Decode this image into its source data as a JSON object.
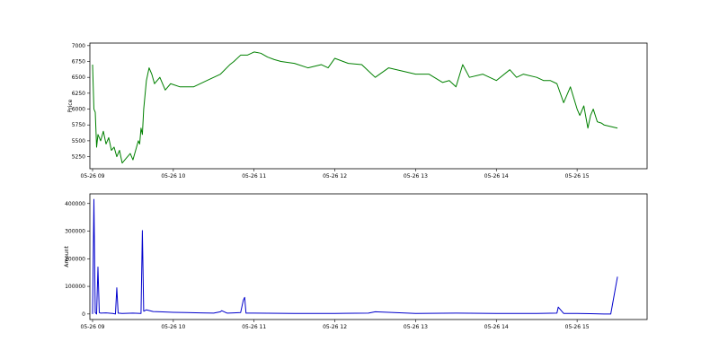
{
  "chart_data": [
    {
      "type": "line",
      "ylabel": "Price",
      "xlabel": "",
      "title": "",
      "ylim": [
        5060,
        7040
      ],
      "xlim": [
        "05-26 08:58",
        "05-26 15:52"
      ],
      "grid": false,
      "color": "#008000",
      "xticks": [
        "05-26 09",
        "05-26 10",
        "05-26 11",
        "05-26 12",
        "05-26 13",
        "05-26 14",
        "05-26 15"
      ],
      "yticks": [
        5250,
        5500,
        5750,
        6000,
        6250,
        6500,
        6750,
        7000
      ],
      "series": [
        {
          "x": [
            "09:00",
            "09:01",
            "09:02",
            "09:03",
            "09:04",
            "09:06",
            "09:08",
            "09:10",
            "09:12",
            "09:14",
            "09:16",
            "09:18",
            "09:20",
            "09:22",
            "09:24",
            "09:26",
            "09:28",
            "09:30",
            "09:32",
            "09:34",
            "09:35",
            "09:36",
            "09:37",
            "09:38",
            "09:40",
            "09:42",
            "09:44",
            "09:46",
            "09:50",
            "09:54",
            "09:58",
            "10:05",
            "10:15",
            "10:25",
            "10:35",
            "10:42",
            "10:45",
            "10:50",
            "10:55",
            "11:00",
            "11:05",
            "11:10",
            "11:15",
            "11:20",
            "11:30",
            "11:40",
            "11:50",
            "11:55",
            "12:00",
            "12:10",
            "12:20",
            "12:25",
            "12:30",
            "12:40",
            "12:50",
            "13:00",
            "13:10",
            "13:20",
            "13:25",
            "13:30",
            "13:35",
            "13:40",
            "13:50",
            "14:00",
            "14:10",
            "14:15",
            "14:20",
            "14:30",
            "14:35",
            "14:40",
            "14:45",
            "14:50",
            "14:55",
            "15:00",
            "15:02",
            "15:05",
            "15:08",
            "15:10",
            "15:12",
            "15:15",
            "15:18",
            "15:20",
            "15:30"
          ],
          "y": [
            6700,
            6000,
            5950,
            5400,
            5600,
            5500,
            5650,
            5450,
            5550,
            5350,
            5400,
            5250,
            5350,
            5150,
            5200,
            5250,
            5300,
            5200,
            5350,
            5500,
            5450,
            5700,
            5600,
            6000,
            6450,
            6650,
            6550,
            6400,
            6500,
            6300,
            6400,
            6350,
            6350,
            6450,
            6550,
            6700,
            6750,
            6850,
            6850,
            6900,
            6880,
            6820,
            6780,
            6750,
            6720,
            6650,
            6700,
            6650,
            6800,
            6720,
            6700,
            6600,
            6500,
            6650,
            6600,
            6550,
            6550,
            6420,
            6450,
            6350,
            6700,
            6500,
            6550,
            6450,
            6620,
            6500,
            6550,
            6500,
            6450,
            6450,
            6400,
            6100,
            6350,
            6000,
            5900,
            6050,
            5700,
            5900,
            6000,
            5800,
            5780,
            5750,
            5700
          ]
        }
      ]
    },
    {
      "type": "line",
      "ylabel": "Amount",
      "xlabel": "",
      "title": "",
      "ylim": [
        -20000,
        435000
      ],
      "xlim": [
        "05-26 08:58",
        "05-26 15:52"
      ],
      "grid": false,
      "color": "#0000cc",
      "xticks": [
        "05-26 09",
        "05-26 10",
        "05-26 11",
        "05-26 12",
        "05-26 13",
        "05-26 14",
        "05-26 15"
      ],
      "yticks": [
        0,
        100000,
        200000,
        300000,
        400000
      ],
      "series": [
        {
          "x": [
            "09:00",
            "09:01",
            "09:02",
            "09:03",
            "09:04",
            "09:05",
            "09:06",
            "09:10",
            "09:15",
            "09:17",
            "09:18",
            "09:19",
            "09:22",
            "09:30",
            "09:36",
            "09:37",
            "09:38",
            "09:40",
            "09:45",
            "09:50",
            "10:00",
            "10:10",
            "10:20",
            "10:30",
            "10:35",
            "10:36",
            "10:40",
            "10:45",
            "10:50",
            "10:52",
            "10:53",
            "10:54",
            "11:00",
            "11:30",
            "12:00",
            "12:25",
            "12:30",
            "13:00",
            "13:30",
            "14:00",
            "14:30",
            "14:45",
            "14:46",
            "14:50",
            "15:00",
            "15:10",
            "15:20",
            "15:25",
            "15:30"
          ],
          "y": [
            0,
            415000,
            5000,
            0,
            170000,
            5000,
            3000,
            4000,
            2000,
            0,
            95000,
            3000,
            2000,
            3000,
            2000,
            302000,
            10000,
            15000,
            9000,
            8000,
            6000,
            5000,
            4000,
            3000,
            8000,
            12000,
            3000,
            4000,
            5000,
            50000,
            60000,
            3000,
            3000,
            2000,
            2000,
            3000,
            8000,
            2000,
            3000,
            2000,
            2000,
            3000,
            25000,
            2000,
            2000,
            1000,
            0,
            0,
            135000
          ]
        }
      ]
    }
  ]
}
